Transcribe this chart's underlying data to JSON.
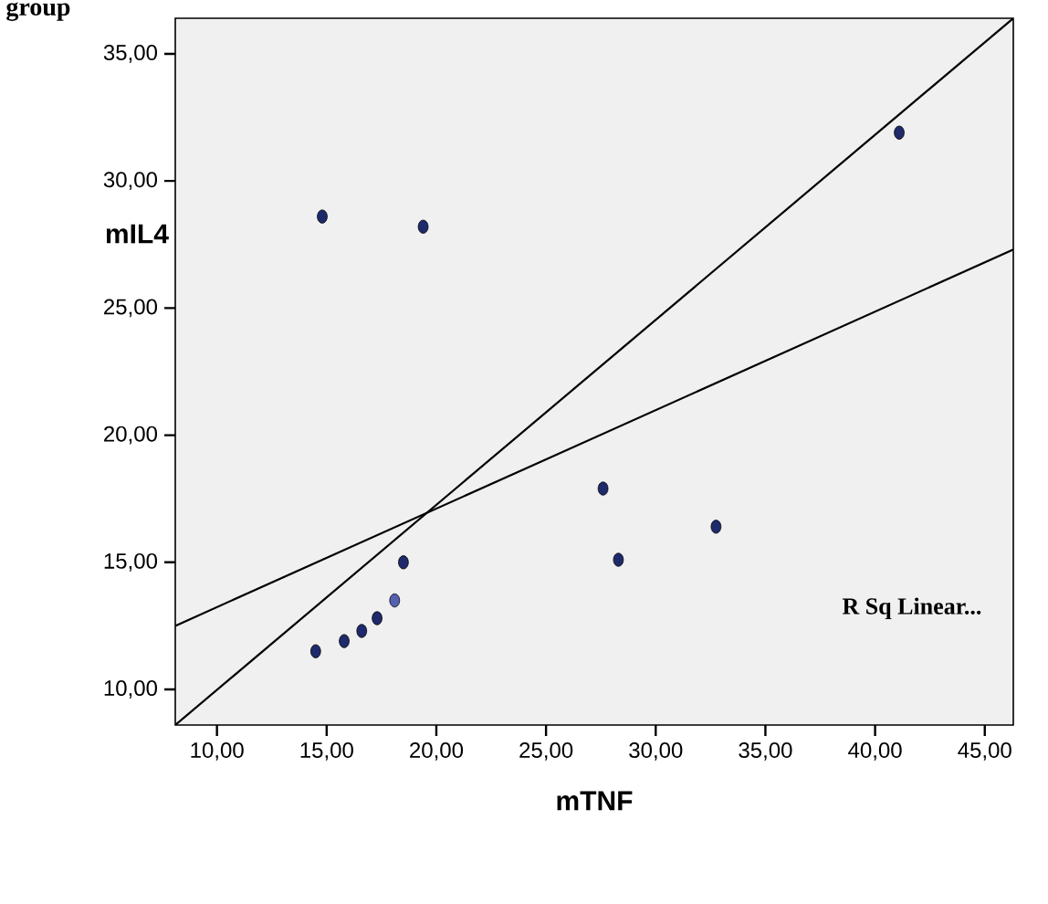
{
  "chart_data": {
    "type": "scatter",
    "title": "group",
    "xlabel": "mTNF",
    "ylabel": "mIL4",
    "annotations": [
      "R Sq Linear..."
    ],
    "xlim": [
      8.1,
      46.3
    ],
    "ylim": [
      8.6,
      36.4
    ],
    "xticks": [
      {
        "value": 10,
        "label": "10,00"
      },
      {
        "value": 15,
        "label": "15,00"
      },
      {
        "value": 20,
        "label": "20,00"
      },
      {
        "value": 25,
        "label": "25,00"
      },
      {
        "value": 30,
        "label": "30,00"
      },
      {
        "value": 35,
        "label": "35,00"
      },
      {
        "value": 40,
        "label": "40,00"
      },
      {
        "value": 45,
        "label": "45,00"
      }
    ],
    "yticks": [
      {
        "value": 10,
        "label": "10,00"
      },
      {
        "value": 15,
        "label": "15,00"
      },
      {
        "value": 20,
        "label": "20,00"
      },
      {
        "value": 25,
        "label": "25,00"
      },
      {
        "value": 30,
        "label": "30,00"
      },
      {
        "value": 35,
        "label": "35,00"
      }
    ],
    "grid": false,
    "series": [
      {
        "marker": "circle",
        "x": [
          14.8,
          19.4,
          41.1,
          14.5,
          15.8,
          16.6,
          17.3,
          18.1,
          18.5,
          27.6,
          28.3,
          32.75
        ],
        "values": [
          28.6,
          28.2,
          31.9,
          11.5,
          11.9,
          12.3,
          12.8,
          13.5,
          15.0,
          17.9,
          15.1,
          16.4
        ],
        "colors": [
          "#1f2a6b",
          "#1f2a6b",
          "#1f2a6b",
          "#1f2a6b",
          "#1f2a6b",
          "#1f2a6b",
          "#1f2a6b",
          "#5560b0",
          "#1f2a6b",
          "#1f2a6b",
          "#1f2a6b",
          "#1f2a6b"
        ]
      },
      {
        "type": "line",
        "x": [
          8.1,
          46.3
        ],
        "values": [
          8.6,
          36.4
        ],
        "color": "#000000"
      },
      {
        "type": "line",
        "x": [
          8.1,
          46.3
        ],
        "values": [
          12.5,
          27.3
        ],
        "color": "#000000"
      }
    ]
  }
}
